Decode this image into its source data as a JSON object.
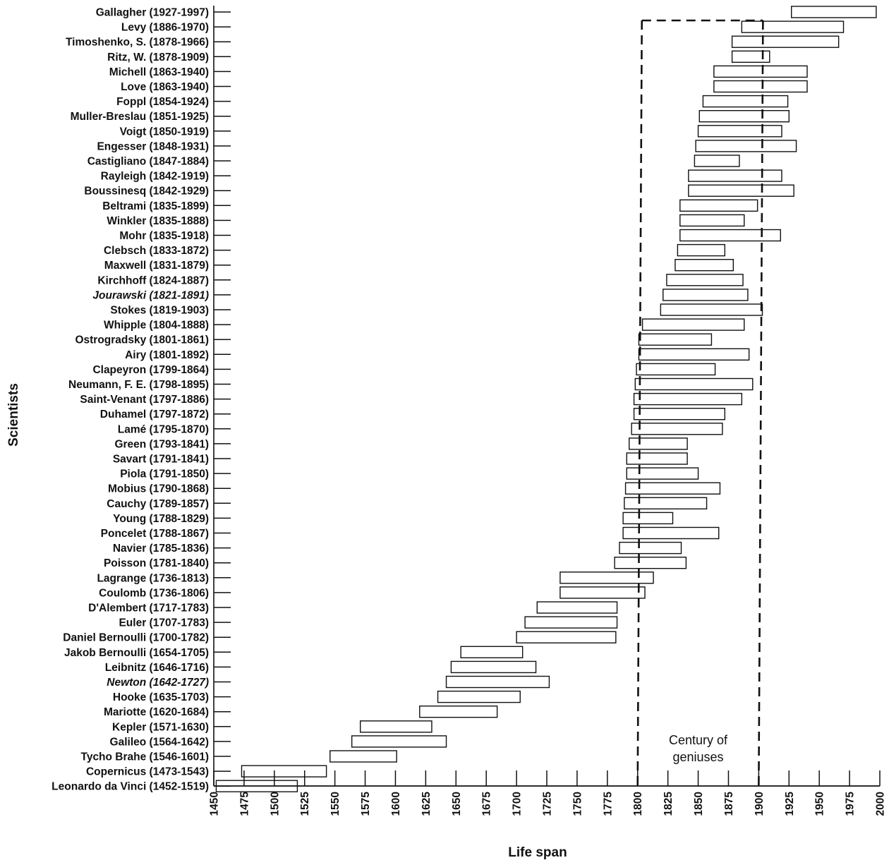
{
  "chart_data": {
    "type": "bar",
    "orientation": "horizontal-range",
    "xlabel": "Life span",
    "ylabel": "Scientists",
    "xlim": [
      1450,
      2000
    ],
    "xticks": [
      1450,
      1475,
      1500,
      1525,
      1550,
      1575,
      1600,
      1625,
      1650,
      1675,
      1700,
      1725,
      1750,
      1775,
      1800,
      1825,
      1850,
      1875,
      1900,
      1925,
      1950,
      1975,
      2000
    ],
    "categories": [
      "Gallagher (1927-1997)",
      "Levy (1886-1970)",
      "Timoshenko, S. (1878-1966)",
      "Ritz, W. (1878-1909)",
      "Michell (1863-1940)",
      "Love (1863-1940)",
      "Foppl (1854-1924)",
      "Muller-Breslau (1851-1925)",
      "Voigt (1850-1919)",
      "Engesser (1848-1931)",
      "Castigliano (1847-1884)",
      "Rayleigh (1842-1919)",
      "Boussinesq (1842-1929)",
      "Beltrami (1835-1899)",
      "Winkler (1835-1888)",
      "Mohr (1835-1918)",
      "Clebsch (1833-1872)",
      "Maxwell (1831-1879)",
      "Kirchhoff (1824-1887)",
      "Jourawski (1821-1891)",
      "Stokes (1819-1903)",
      "Whipple (1804-1888)",
      "Ostrogradsky (1801-1861)",
      "Airy (1801-1892)",
      "Clapeyron (1799-1864)",
      "Neumann, F. E. (1798-1895)",
      "Saint-Venant (1797-1886)",
      "Duhamel (1797-1872)",
      "Lamé (1795-1870)",
      "Green (1793-1841)",
      "Savart (1791-1841)",
      "Piola (1791-1850)",
      "Mobius (1790-1868)",
      "Cauchy (1789-1857)",
      "Young (1788-1829)",
      "Poncelet  (1788-1867)",
      "Navier (1785-1836)",
      "Poisson (1781-1840)",
      "Lagrange (1736-1813)",
      "Coulomb (1736-1806)",
      "D'Alembert (1717-1783)",
      "Euler (1707-1783)",
      "Daniel Bernoulli (1700-1782)",
      "Jakob Bernoulli (1654-1705)",
      "Leibnitz (1646-1716)",
      "Newton (1642-1727)",
      "Hooke (1635-1703)",
      "Mariotte (1620-1684)",
      "Kepler (1571-1630)",
      "Galileo (1564-1642)",
      "Tycho Brahe (1546-1601)",
      "Copernicus (1473-1543)",
      "Leonardo da Vinci (1452-1519)"
    ],
    "ranges": [
      [
        1927,
        1997
      ],
      [
        1886,
        1970
      ],
      [
        1878,
        1966
      ],
      [
        1878,
        1909
      ],
      [
        1863,
        1940
      ],
      [
        1863,
        1940
      ],
      [
        1854,
        1924
      ],
      [
        1851,
        1925
      ],
      [
        1850,
        1919
      ],
      [
        1848,
        1931
      ],
      [
        1847,
        1884
      ],
      [
        1842,
        1919
      ],
      [
        1842,
        1929
      ],
      [
        1835,
        1899
      ],
      [
        1835,
        1888
      ],
      [
        1835,
        1918
      ],
      [
        1833,
        1872
      ],
      [
        1831,
        1879
      ],
      [
        1824,
        1887
      ],
      [
        1821,
        1891
      ],
      [
        1819,
        1903
      ],
      [
        1804,
        1888
      ],
      [
        1801,
        1861
      ],
      [
        1801,
        1892
      ],
      [
        1799,
        1864
      ],
      [
        1798,
        1895
      ],
      [
        1797,
        1886
      ],
      [
        1797,
        1872
      ],
      [
        1795,
        1870
      ],
      [
        1793,
        1841
      ],
      [
        1791,
        1841
      ],
      [
        1791,
        1850
      ],
      [
        1790,
        1868
      ],
      [
        1789,
        1857
      ],
      [
        1788,
        1829
      ],
      [
        1788,
        1867
      ],
      [
        1785,
        1836
      ],
      [
        1781,
        1840
      ],
      [
        1736,
        1813
      ],
      [
        1736,
        1806
      ],
      [
        1717,
        1783
      ],
      [
        1707,
        1783
      ],
      [
        1700,
        1782
      ],
      [
        1654,
        1705
      ],
      [
        1646,
        1716
      ],
      [
        1642,
        1727
      ],
      [
        1635,
        1703
      ],
      [
        1620,
        1684
      ],
      [
        1571,
        1630
      ],
      [
        1564,
        1642
      ],
      [
        1546,
        1601
      ],
      [
        1473,
        1543
      ],
      [
        1452,
        1519
      ]
    ],
    "italic_categories": [
      "Jourawski (1821-1891)",
      "Newton (1642-1727)"
    ],
    "annotation": {
      "lines": [
        "Century of",
        "geniuses"
      ],
      "region": [
        1800,
        1900
      ],
      "style": "dashed-box"
    },
    "grid": false,
    "legend": "none"
  }
}
